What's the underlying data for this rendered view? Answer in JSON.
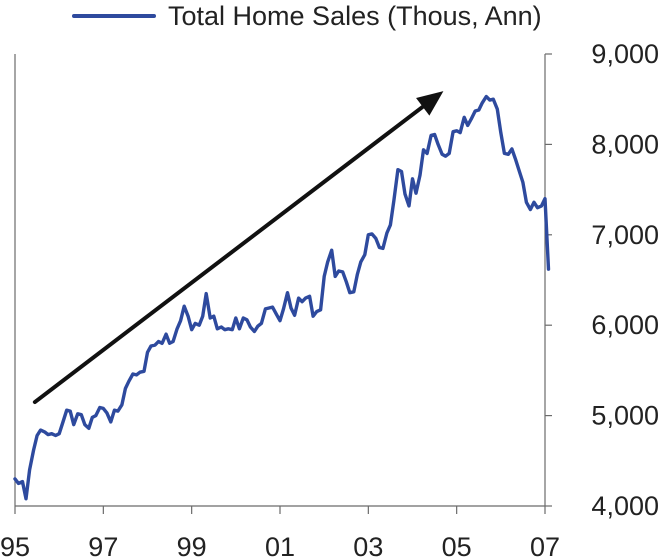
{
  "colors": {
    "series": "#2e4a9e",
    "axis": "#6b6b6b",
    "arrow": "#111111",
    "text": "#222222"
  },
  "legend_label": "Total Home Sales (Thous, Ann)",
  "chart_data": {
    "type": "line",
    "title": "",
    "xlabel": "",
    "ylabel": "",
    "y_axis_side": "right",
    "legend_position": "top",
    "grid": false,
    "x_range": [
      1995.0,
      2007.0
    ],
    "ylim": [
      4000,
      9000
    ],
    "x_tick_labels": [
      "95",
      "97",
      "99",
      "01",
      "03",
      "05",
      "07"
    ],
    "x_tick_values": [
      1995,
      1997,
      1999,
      2001,
      2003,
      2005,
      2007
    ],
    "y_tick_labels": [
      "4,000",
      "5,000",
      "6,000",
      "7,000",
      "8,000",
      "9,000"
    ],
    "y_tick_values": [
      4000,
      5000,
      6000,
      7000,
      8000,
      9000
    ],
    "annotation": {
      "type": "arrow",
      "description": "upward trend arrow",
      "from": {
        "x": 1995.45,
        "y": 5150
      },
      "to": {
        "x": 2004.7,
        "y": 8590
      }
    },
    "series": [
      {
        "name": "Total Home Sales (Thous, Ann)",
        "points": [
          [
            1995.0,
            4300
          ],
          [
            1995.08,
            4250
          ],
          [
            1995.17,
            4270
          ],
          [
            1995.25,
            4080
          ],
          [
            1995.33,
            4400
          ],
          [
            1995.42,
            4620
          ],
          [
            1995.5,
            4780
          ],
          [
            1995.58,
            4840
          ],
          [
            1995.67,
            4820
          ],
          [
            1995.75,
            4790
          ],
          [
            1995.83,
            4800
          ],
          [
            1995.92,
            4780
          ],
          [
            1996.0,
            4800
          ],
          [
            1996.08,
            4920
          ],
          [
            1996.17,
            5060
          ],
          [
            1996.25,
            5050
          ],
          [
            1996.33,
            4900
          ],
          [
            1996.42,
            5020
          ],
          [
            1996.5,
            5010
          ],
          [
            1996.58,
            4900
          ],
          [
            1996.67,
            4860
          ],
          [
            1996.75,
            4980
          ],
          [
            1996.83,
            5000
          ],
          [
            1996.92,
            5090
          ],
          [
            1997.0,
            5080
          ],
          [
            1997.08,
            5030
          ],
          [
            1997.17,
            4930
          ],
          [
            1997.25,
            5060
          ],
          [
            1997.33,
            5050
          ],
          [
            1997.42,
            5120
          ],
          [
            1997.5,
            5300
          ],
          [
            1997.58,
            5380
          ],
          [
            1997.67,
            5460
          ],
          [
            1997.75,
            5450
          ],
          [
            1997.83,
            5480
          ],
          [
            1997.92,
            5490
          ],
          [
            1998.0,
            5700
          ],
          [
            1998.08,
            5770
          ],
          [
            1998.17,
            5780
          ],
          [
            1998.25,
            5820
          ],
          [
            1998.33,
            5800
          ],
          [
            1998.42,
            5900
          ],
          [
            1998.5,
            5800
          ],
          [
            1998.58,
            5820
          ],
          [
            1998.67,
            5960
          ],
          [
            1998.75,
            6050
          ],
          [
            1998.83,
            6210
          ],
          [
            1998.92,
            6100
          ],
          [
            1999.0,
            5950
          ],
          [
            1999.08,
            6020
          ],
          [
            1999.17,
            6000
          ],
          [
            1999.25,
            6100
          ],
          [
            1999.33,
            6350
          ],
          [
            1999.42,
            6080
          ],
          [
            1999.5,
            6100
          ],
          [
            1999.58,
            5960
          ],
          [
            1999.67,
            5980
          ],
          [
            1999.75,
            5950
          ],
          [
            1999.83,
            5960
          ],
          [
            1999.92,
            5950
          ],
          [
            2000.0,
            6080
          ],
          [
            2000.08,
            5960
          ],
          [
            2000.17,
            6080
          ],
          [
            2000.25,
            6060
          ],
          [
            2000.33,
            5980
          ],
          [
            2000.42,
            5930
          ],
          [
            2000.5,
            5990
          ],
          [
            2000.58,
            6020
          ],
          [
            2000.67,
            6180
          ],
          [
            2000.75,
            6190
          ],
          [
            2000.83,
            6200
          ],
          [
            2000.92,
            6120
          ],
          [
            2001.0,
            6050
          ],
          [
            2001.08,
            6180
          ],
          [
            2001.17,
            6360
          ],
          [
            2001.25,
            6190
          ],
          [
            2001.33,
            6110
          ],
          [
            2001.42,
            6300
          ],
          [
            2001.5,
            6260
          ],
          [
            2001.58,
            6300
          ],
          [
            2001.67,
            6320
          ],
          [
            2001.75,
            6100
          ],
          [
            2001.83,
            6150
          ],
          [
            2001.92,
            6170
          ],
          [
            2002.0,
            6540
          ],
          [
            2002.08,
            6700
          ],
          [
            2002.17,
            6830
          ],
          [
            2002.25,
            6540
          ],
          [
            2002.33,
            6600
          ],
          [
            2002.42,
            6590
          ],
          [
            2002.5,
            6480
          ],
          [
            2002.58,
            6360
          ],
          [
            2002.67,
            6370
          ],
          [
            2002.75,
            6560
          ],
          [
            2002.83,
            6700
          ],
          [
            2002.92,
            6780
          ],
          [
            2003.0,
            7000
          ],
          [
            2003.08,
            7010
          ],
          [
            2003.17,
            6960
          ],
          [
            2003.25,
            6860
          ],
          [
            2003.33,
            6850
          ],
          [
            2003.42,
            7020
          ],
          [
            2003.5,
            7110
          ],
          [
            2003.58,
            7380
          ],
          [
            2003.67,
            7720
          ],
          [
            2003.75,
            7700
          ],
          [
            2003.83,
            7450
          ],
          [
            2003.92,
            7320
          ],
          [
            2004.0,
            7620
          ],
          [
            2004.08,
            7460
          ],
          [
            2004.17,
            7660
          ],
          [
            2004.25,
            7940
          ],
          [
            2004.33,
            7900
          ],
          [
            2004.42,
            8100
          ],
          [
            2004.5,
            8110
          ],
          [
            2004.58,
            8000
          ],
          [
            2004.67,
            7890
          ],
          [
            2004.75,
            7870
          ],
          [
            2004.83,
            7900
          ],
          [
            2004.92,
            8140
          ],
          [
            2005.0,
            8150
          ],
          [
            2005.08,
            8130
          ],
          [
            2005.17,
            8300
          ],
          [
            2005.25,
            8210
          ],
          [
            2005.33,
            8280
          ],
          [
            2005.42,
            8370
          ],
          [
            2005.5,
            8380
          ],
          [
            2005.58,
            8460
          ],
          [
            2005.67,
            8530
          ],
          [
            2005.75,
            8490
          ],
          [
            2005.83,
            8500
          ],
          [
            2005.92,
            8390
          ],
          [
            2006.0,
            8130
          ],
          [
            2006.08,
            7900
          ],
          [
            2006.17,
            7890
          ],
          [
            2006.25,
            7950
          ],
          [
            2006.33,
            7840
          ],
          [
            2006.42,
            7700
          ],
          [
            2006.5,
            7580
          ],
          [
            2006.58,
            7360
          ],
          [
            2006.67,
            7280
          ],
          [
            2006.75,
            7360
          ],
          [
            2006.83,
            7300
          ],
          [
            2006.92,
            7320
          ],
          [
            2007.0,
            7400
          ],
          [
            2007.08,
            6620
          ]
        ]
      }
    ]
  }
}
